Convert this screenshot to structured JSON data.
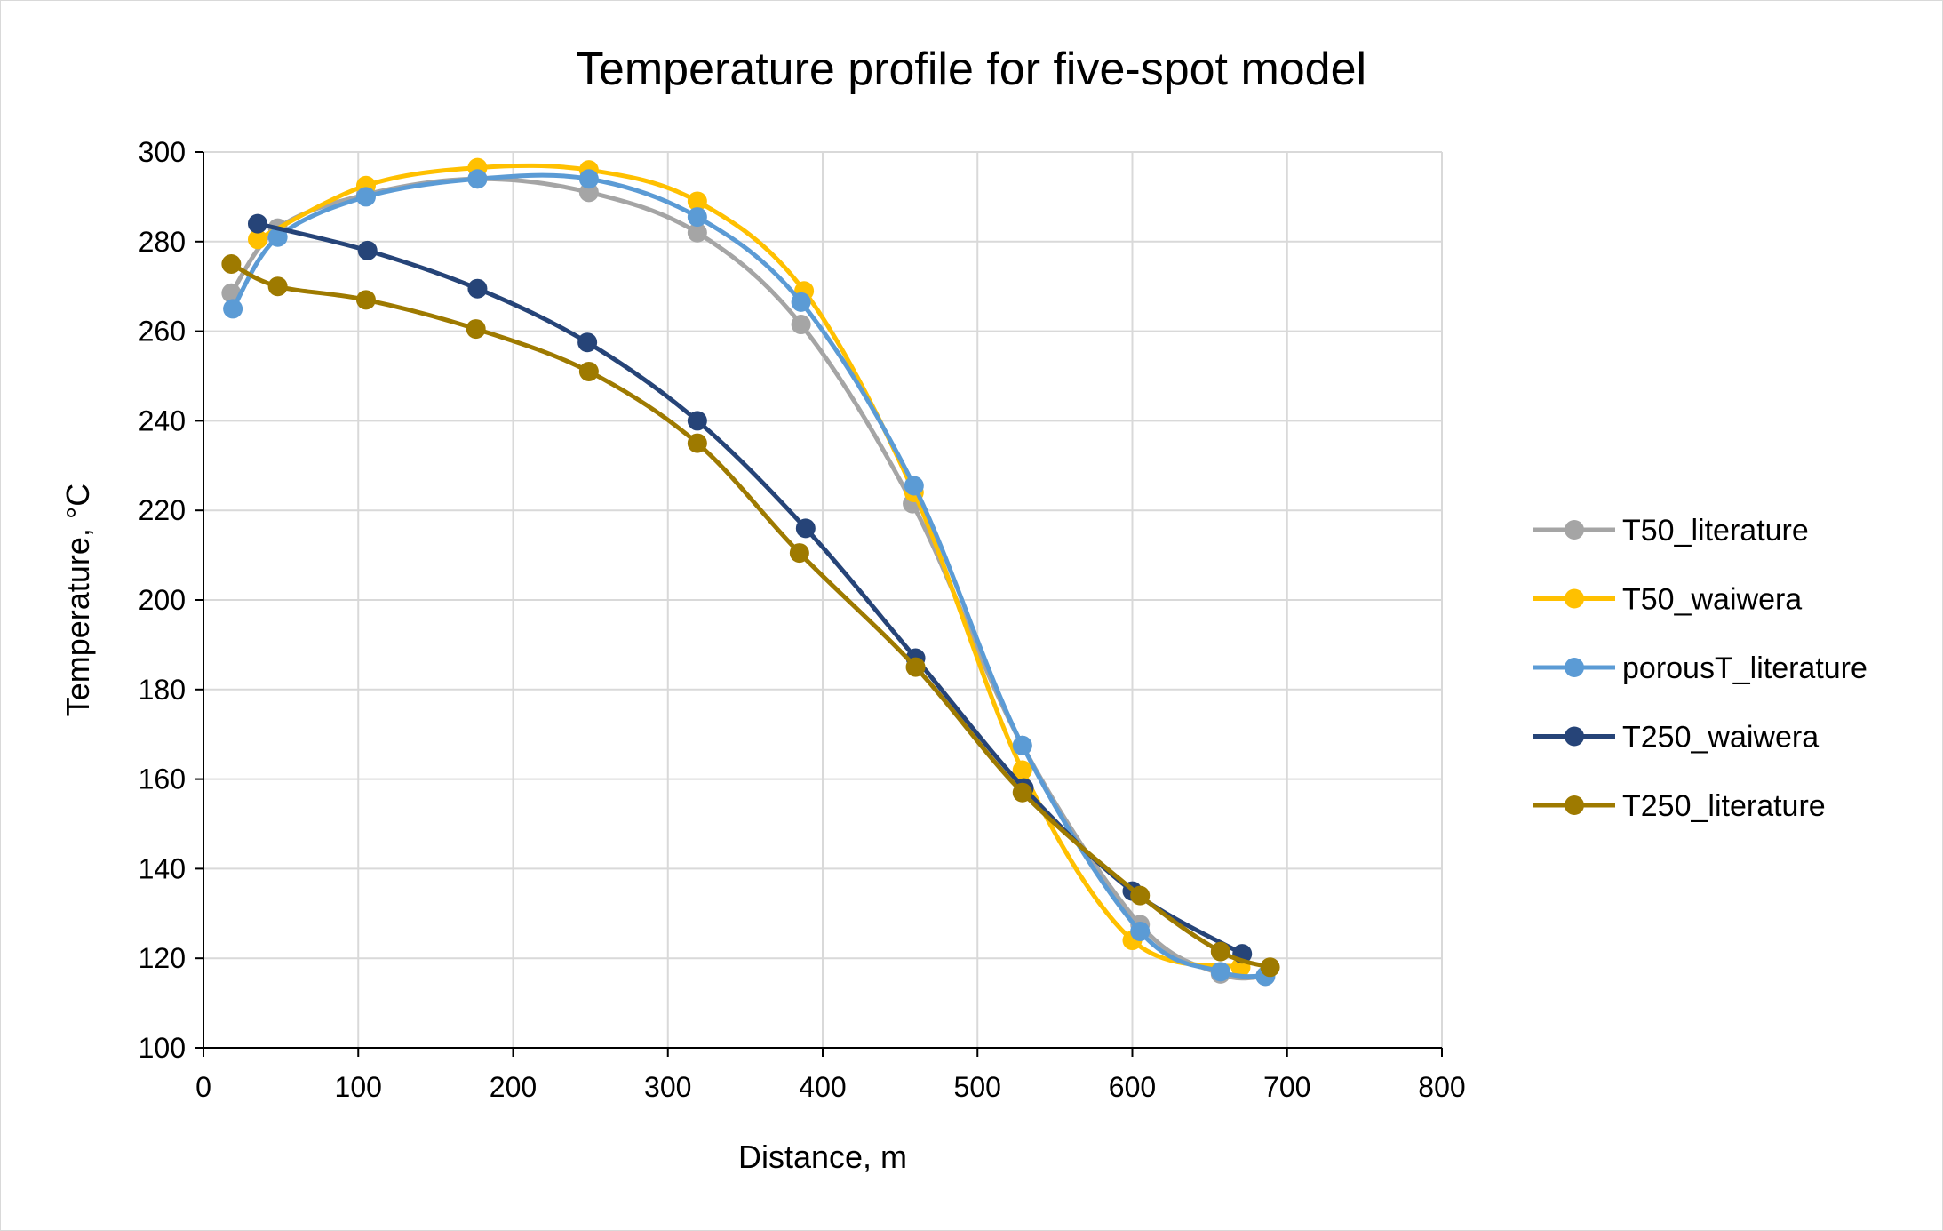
{
  "chart_data": {
    "type": "line",
    "title": "Temperature profile for five-spot model",
    "xlabel": "Distance, m",
    "ylabel": "Temperature, °C",
    "xlim": [
      0,
      800
    ],
    "ylim": [
      100,
      300
    ],
    "xticks": [
      "0",
      "100",
      "200",
      "300",
      "400",
      "500",
      "600",
      "700",
      "800"
    ],
    "yticks": [
      "100",
      "120",
      "140",
      "160",
      "180",
      "200",
      "220",
      "240",
      "260",
      "280",
      "300"
    ],
    "grid": true,
    "legend_position": "right",
    "smooth": true,
    "series": [
      {
        "name": "T50_literature",
        "color": "#a5a5a5",
        "x": [
          18,
          48,
          105,
          177,
          249,
          319,
          386,
          458,
          529,
          605,
          657,
          686
        ],
        "y": [
          268.5,
          283,
          290.5,
          294,
          291,
          282,
          261.5,
          221.5,
          167.5,
          127.5,
          116.5,
          116
        ]
      },
      {
        "name": "T50_waiwera",
        "color": "#ffc000",
        "x": [
          35,
          105,
          177,
          249,
          319,
          388,
          459,
          529,
          600,
          670
        ],
        "y": [
          280.5,
          292.5,
          296.5,
          296,
          289,
          269,
          224,
          162,
          124,
          118
        ]
      },
      {
        "name": "porousT_literature",
        "color": "#5b9bd5",
        "x": [
          19,
          48,
          105,
          177,
          249,
          319,
          386,
          459,
          529,
          605,
          657,
          686
        ],
        "y": [
          265,
          281,
          290,
          294,
          294,
          285.5,
          266.5,
          225.5,
          167.5,
          126,
          117,
          116
        ]
      },
      {
        "name": "T250_waiwera",
        "color": "#264478",
        "x": [
          35,
          106,
          177,
          248,
          319,
          389,
          460,
          530,
          600,
          671
        ],
        "y": [
          284,
          278,
          269.5,
          257.5,
          240,
          216,
          187,
          158,
          135,
          121
        ]
      },
      {
        "name": "T250_literature",
        "color": "#9e7a00",
        "x": [
          18,
          48,
          105,
          176,
          249,
          319,
          385,
          460,
          529,
          605,
          657,
          689
        ],
        "y": [
          275,
          270,
          267,
          260.5,
          251,
          235,
          210.5,
          185,
          157,
          134,
          121.5,
          118
        ]
      }
    ]
  }
}
